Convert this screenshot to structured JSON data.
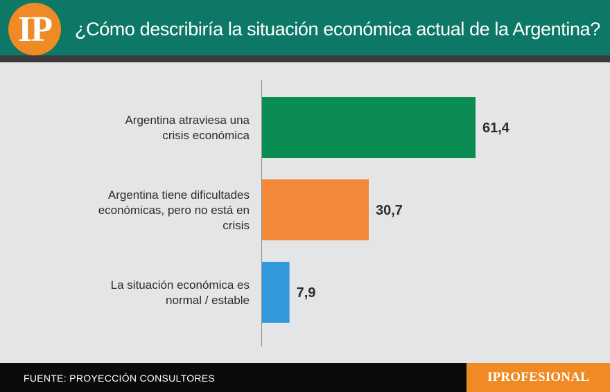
{
  "header": {
    "logo_text": "IP",
    "title": "¿Cómo describiría la situación económica actual de la Argentina?"
  },
  "chart_data": {
    "type": "bar",
    "orientation": "horizontal",
    "title": "¿Cómo describiría la situación económica actual de la Argentina?",
    "categories": [
      "Argentina atraviesa una crisis económica",
      "Argentina tiene dificultades económicas, pero no está en crisis",
      "La situación económica es normal / estable"
    ],
    "category_lines": [
      [
        "Argentina atraviesa una",
        "crisis económica"
      ],
      [
        "Argentina tiene dificultades",
        "económicas, pero no está en",
        "crisis"
      ],
      [
        "La situación económica es",
        "normal / estable"
      ]
    ],
    "values": [
      61.4,
      30.7,
      7.9
    ],
    "value_labels": [
      "61,4",
      "30,7",
      "7,9"
    ],
    "colors": [
      "#0a8c52",
      "#f3883a",
      "#3399dd"
    ],
    "xlim": [
      0,
      70
    ],
    "grid": false,
    "legend": "none"
  },
  "footer": {
    "source": "FUENTE: PROYECCIÓN CONSULTORES",
    "brand": "IPROFESIONAL"
  }
}
